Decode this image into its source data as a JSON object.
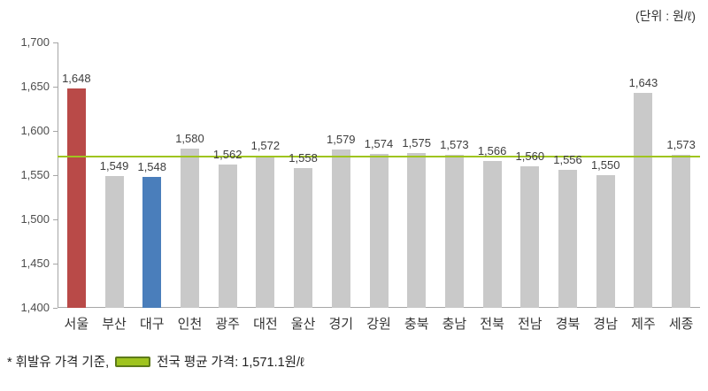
{
  "unit_label": "(단위 : 원/ℓ)",
  "footnote": {
    "prefix": "* 휘발유 가격 기준,",
    "legend_label": "전국 평균 가격: 1,571.1원/ℓ"
  },
  "chart_data": {
    "type": "bar",
    "title": "",
    "xlabel": "",
    "ylabel": "",
    "categories": [
      "서울",
      "부산",
      "대구",
      "인천",
      "광주",
      "대전",
      "울산",
      "경기",
      "강원",
      "충북",
      "충남",
      "전북",
      "전남",
      "경북",
      "경남",
      "제주",
      "세종"
    ],
    "values": [
      1648,
      1549,
      1548,
      1580,
      1562,
      1572,
      1558,
      1579,
      1574,
      1575,
      1573,
      1566,
      1560,
      1556,
      1550,
      1643,
      1573
    ],
    "value_labels": [
      "1,648",
      "1,549",
      "1,548",
      "1,580",
      "1,562",
      "1,572",
      "1,558",
      "1,579",
      "1,574",
      "1,575",
      "1,573",
      "1,566",
      "1,560",
      "1,556",
      "1,550",
      "1,643",
      "1,573"
    ],
    "bar_colors": [
      "#b94a48",
      "#c9c9c9",
      "#4a7ebb",
      "#c9c9c9",
      "#c9c9c9",
      "#c9c9c9",
      "#c9c9c9",
      "#c9c9c9",
      "#c9c9c9",
      "#c9c9c9",
      "#c9c9c9",
      "#c9c9c9",
      "#c9c9c9",
      "#c9c9c9",
      "#c9c9c9",
      "#c9c9c9",
      "#c9c9c9"
    ],
    "average_line": {
      "value": 1571.1,
      "color": "#9fc41f",
      "label": "전국 평균 가격: 1,571.1원/ℓ"
    },
    "ylim": [
      1400,
      1700
    ],
    "yticks": [
      "1,400",
      "1,450",
      "1,500",
      "1,550",
      "1,600",
      "1,650",
      "1,700"
    ],
    "grid": false,
    "legend_position": "bottom"
  }
}
